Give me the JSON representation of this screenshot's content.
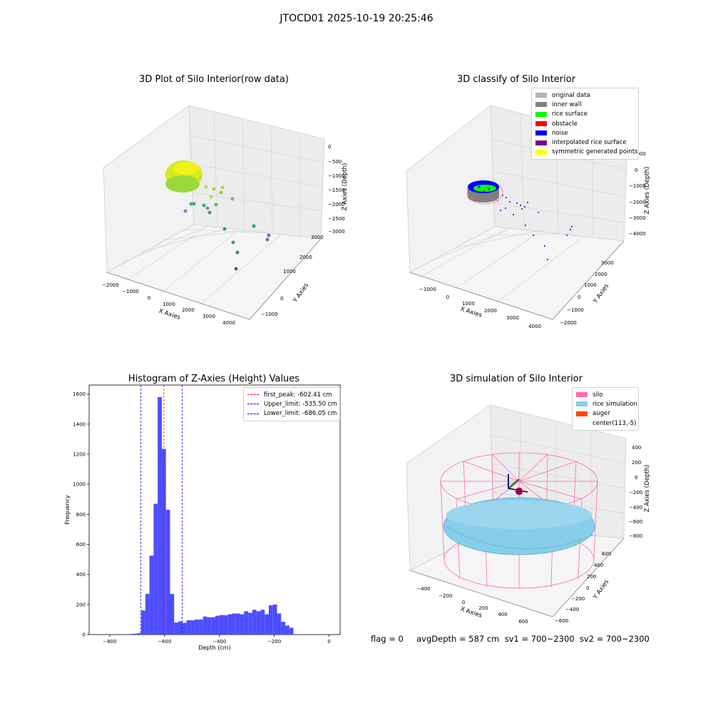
{
  "figure": {
    "suptitle": "JTOCD01 2025-10-19 20:25:46",
    "footer": "flag = 0     avgDepth = 587 cm  sv1 = 700~2300  sv2 = 700~2300"
  },
  "colors": {
    "original_data": "#b3b3b3",
    "inner_wall": "#808080",
    "rice_surface": "#00ff00",
    "obstacle": "#ff0000",
    "noise": "#0000ff",
    "interpolated_rice_surface": "#800080",
    "symmetric_generated_points": "#ffff00",
    "silo": "#ff69b4",
    "rice_simulation": "#87ceeb",
    "auger": "#ff4500",
    "hist_bar": "#4d4dff",
    "first_peak_line": "#ff0000",
    "limit_lines": "#0000ff"
  },
  "plot1": {
    "title": "3D Plot of Silo Interior(row data)",
    "xlabel": "X Axies",
    "ylabel": "Y Axies",
    "zlabel": "Z Axies (Depth)",
    "xticks": [
      "−2000",
      "−1000",
      "0",
      "1000",
      "2000",
      "3000",
      "4000"
    ],
    "yticks": [
      "−1000",
      "0",
      "1000",
      "2000",
      "3000"
    ],
    "zticks": [
      "0",
      "−500",
      "−1000",
      "−1500",
      "−2000",
      "−2500",
      "−3000"
    ]
  },
  "plot2": {
    "title": "3D classify of Silo Interior",
    "xlabel": "X Axies",
    "ylabel": "Y Axies",
    "zlabel": "Z Axies (Depth)",
    "xticks": [
      "−1000",
      "0",
      "1000",
      "2000",
      "3000",
      "4000"
    ],
    "yticks": [
      "−2000",
      "−1000",
      "0",
      "1000",
      "2000",
      "3000"
    ],
    "zticks": [
      "1000",
      "0",
      "−1000",
      "−2000",
      "−3000",
      "−4000"
    ],
    "legend": [
      {
        "label": "original data",
        "color": "#b3b3b3"
      },
      {
        "label": "inner wall",
        "color": "#808080"
      },
      {
        "label": "rice surface",
        "color": "#00ff00"
      },
      {
        "label": "obstacle",
        "color": "#ff0000"
      },
      {
        "label": "noise",
        "color": "#0000ff"
      },
      {
        "label": "interpolated rice surface",
        "color": "#800080"
      },
      {
        "label": "symmetric generated points",
        "color": "#ffff00"
      }
    ]
  },
  "plot4": {
    "title": "3D simulation of Silo Interior",
    "xlabel": "X Axies",
    "ylabel": "Y Axies",
    "zlabel": "Z Axies (Depth)",
    "xticks": [
      "−400",
      "−200",
      "0",
      "200",
      "400",
      "600"
    ],
    "yticks": [
      "−600",
      "−400",
      "−200",
      "0",
      "200",
      "400",
      "600"
    ],
    "zticks": [
      "400",
      "200",
      "0",
      "−200",
      "−400",
      "−600",
      "−800"
    ],
    "legend": [
      {
        "label": "silo",
        "color": "#ff69b4"
      },
      {
        "label": "rice simulation",
        "color": "#87ceeb"
      },
      {
        "label": "auger",
        "color": "#ff4500"
      },
      {
        "label": "center(113,-5)",
        "color": ""
      }
    ]
  },
  "chart_data": {
    "type": "bar",
    "title": "Histogram of Z-Axies (Height) Values",
    "xlabel": "Depth (cm)",
    "ylabel": "Frequency",
    "xlim": [
      -875,
      40
    ],
    "ylim": [
      0,
      1660
    ],
    "xticks": [
      -800,
      -600,
      -400,
      -200,
      0
    ],
    "yticks": [
      0,
      200,
      400,
      600,
      800,
      1000,
      1200,
      1400,
      1600
    ],
    "bin_width": 15,
    "bins": [
      {
        "x": -745,
        "value": 3
      },
      {
        "x": -730,
        "value": 4
      },
      {
        "x": -715,
        "value": 6
      },
      {
        "x": -700,
        "value": 10
      },
      {
        "x": -685,
        "value": 160
      },
      {
        "x": -670,
        "value": 270
      },
      {
        "x": -655,
        "value": 525
      },
      {
        "x": -640,
        "value": 870
      },
      {
        "x": -625,
        "value": 1580
      },
      {
        "x": -610,
        "value": 1235
      },
      {
        "x": -595,
        "value": 830
      },
      {
        "x": -580,
        "value": 270
      },
      {
        "x": -565,
        "value": 80
      },
      {
        "x": -550,
        "value": 88
      },
      {
        "x": -535,
        "value": 78
      },
      {
        "x": -520,
        "value": 95
      },
      {
        "x": -505,
        "value": 95
      },
      {
        "x": -490,
        "value": 100
      },
      {
        "x": -475,
        "value": 100
      },
      {
        "x": -460,
        "value": 120
      },
      {
        "x": -445,
        "value": 115
      },
      {
        "x": -430,
        "value": 115
      },
      {
        "x": -415,
        "value": 125
      },
      {
        "x": -400,
        "value": 130
      },
      {
        "x": -385,
        "value": 128
      },
      {
        "x": -370,
        "value": 135
      },
      {
        "x": -355,
        "value": 140
      },
      {
        "x": -340,
        "value": 140
      },
      {
        "x": -325,
        "value": 135
      },
      {
        "x": -310,
        "value": 155
      },
      {
        "x": -295,
        "value": 145
      },
      {
        "x": -280,
        "value": 165
      },
      {
        "x": -265,
        "value": 155
      },
      {
        "x": -250,
        "value": 165
      },
      {
        "x": -235,
        "value": 135
      },
      {
        "x": -220,
        "value": 195
      },
      {
        "x": -205,
        "value": 200
      },
      {
        "x": -190,
        "value": 140
      },
      {
        "x": -175,
        "value": 85
      },
      {
        "x": -160,
        "value": 60
      },
      {
        "x": -145,
        "value": 45
      }
    ],
    "lines": [
      {
        "label": "first_peak: -602.41 cm",
        "x": -602.41,
        "color": "#ff0000"
      },
      {
        "label": "Upper_limit: -535.50 cm",
        "x": -535.5,
        "color": "#0000ff"
      },
      {
        "label": "Lower_limit: -686.05 cm",
        "x": -686.05,
        "color": "#0000ff"
      }
    ]
  }
}
